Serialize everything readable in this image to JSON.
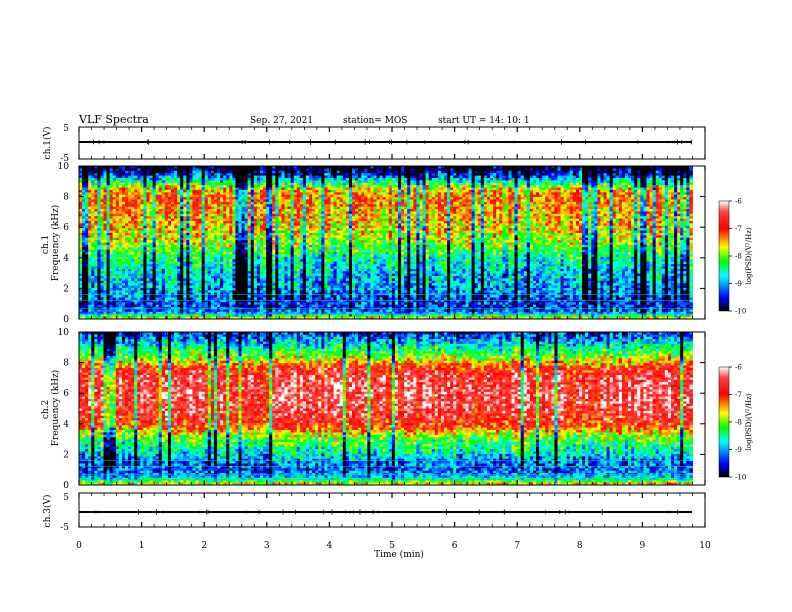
{
  "header": {
    "title": "VLF Spectra",
    "date": "Sep. 27, 2021",
    "station": "station= MOS",
    "start": "start  UT =   14: 10: 1"
  },
  "chart_data": [
    {
      "type": "line",
      "panel": "ch1-waveform",
      "ylabel": "ch.1(V)",
      "ylim": [
        -5,
        5
      ],
      "yticks": [
        "5",
        "-5"
      ],
      "xlim": [
        0,
        10
      ],
      "series": [
        {
          "x": [
            0,
            9.8
          ],
          "values": [
            0,
            0
          ]
        }
      ]
    },
    {
      "type": "heatmap",
      "panel": "ch1-spectrogram",
      "ylabel": "ch.1 Frequency (kHz)",
      "ylim": [
        0,
        10
      ],
      "yticks": [
        "0",
        "2",
        "4",
        "6",
        "8",
        "10"
      ],
      "xlim": [
        0,
        10
      ],
      "x_data_end": 9.8,
      "profile_khz": [
        0,
        0.3,
        0.6,
        1,
        1.5,
        2,
        3,
        4,
        5,
        6,
        7,
        8,
        8.5,
        9,
        9.5,
        10
      ],
      "profile_level": [
        -7.3,
        -8.8,
        -9.3,
        -9.4,
        -9.2,
        -9.0,
        -8.9,
        -8.5,
        -7.9,
        -7.6,
        -7.4,
        -7.2,
        -7.6,
        -8.6,
        -9.6,
        -10
      ],
      "colorbar": {
        "label": "log(PSD)(V²/Hz)",
        "range": [
          -10,
          -6
        ],
        "ticks": [
          "-6",
          "-7",
          "-8",
          "-9",
          "-10"
        ]
      }
    },
    {
      "type": "heatmap",
      "panel": "ch2-spectrogram",
      "ylabel": "ch.2 Frequency (kHz)",
      "ylim": [
        0,
        10
      ],
      "yticks": [
        "0",
        "2",
        "4",
        "6",
        "8",
        "10"
      ],
      "xlim": [
        0,
        10
      ],
      "x_data_end": 9.8,
      "profile_khz": [
        0,
        0.3,
        0.6,
        1,
        1.5,
        2,
        3,
        3.5,
        4,
        5,
        6,
        7,
        7.6,
        8,
        8.5,
        9,
        9.5,
        10
      ],
      "profile_level": [
        -7.3,
        -8.4,
        -9.0,
        -9.3,
        -9.2,
        -8.8,
        -8.2,
        -7.6,
        -6.9,
        -6.6,
        -6.5,
        -6.6,
        -6.9,
        -7.5,
        -8.1,
        -8.6,
        -9.1,
        -9.5
      ],
      "colorbar": {
        "label": "log(PSD)(V²/Hz)",
        "range": [
          -10,
          -6
        ],
        "ticks": [
          "-6",
          "-7",
          "-8",
          "-9",
          "-10"
        ]
      }
    },
    {
      "type": "line",
      "panel": "ch3-waveform",
      "ylabel": "ch.3(V)",
      "ylim": [
        -5,
        5
      ],
      "yticks": [
        "5",
        "-5"
      ],
      "xlim": [
        0,
        10
      ],
      "series": [
        {
          "x": [
            0,
            9.8
          ],
          "values": [
            0,
            0
          ]
        }
      ]
    }
  ],
  "xaxis": {
    "label": "Time  (min)",
    "ticks": [
      "0",
      "1",
      "2",
      "3",
      "4",
      "5",
      "6",
      "7",
      "8",
      "9",
      "10"
    ]
  },
  "colors": {
    "colormap": [
      "#000000",
      "#0000ff",
      "#00ffff",
      "#00ff00",
      "#ffff00",
      "#ff0000",
      "#ffffff"
    ]
  }
}
